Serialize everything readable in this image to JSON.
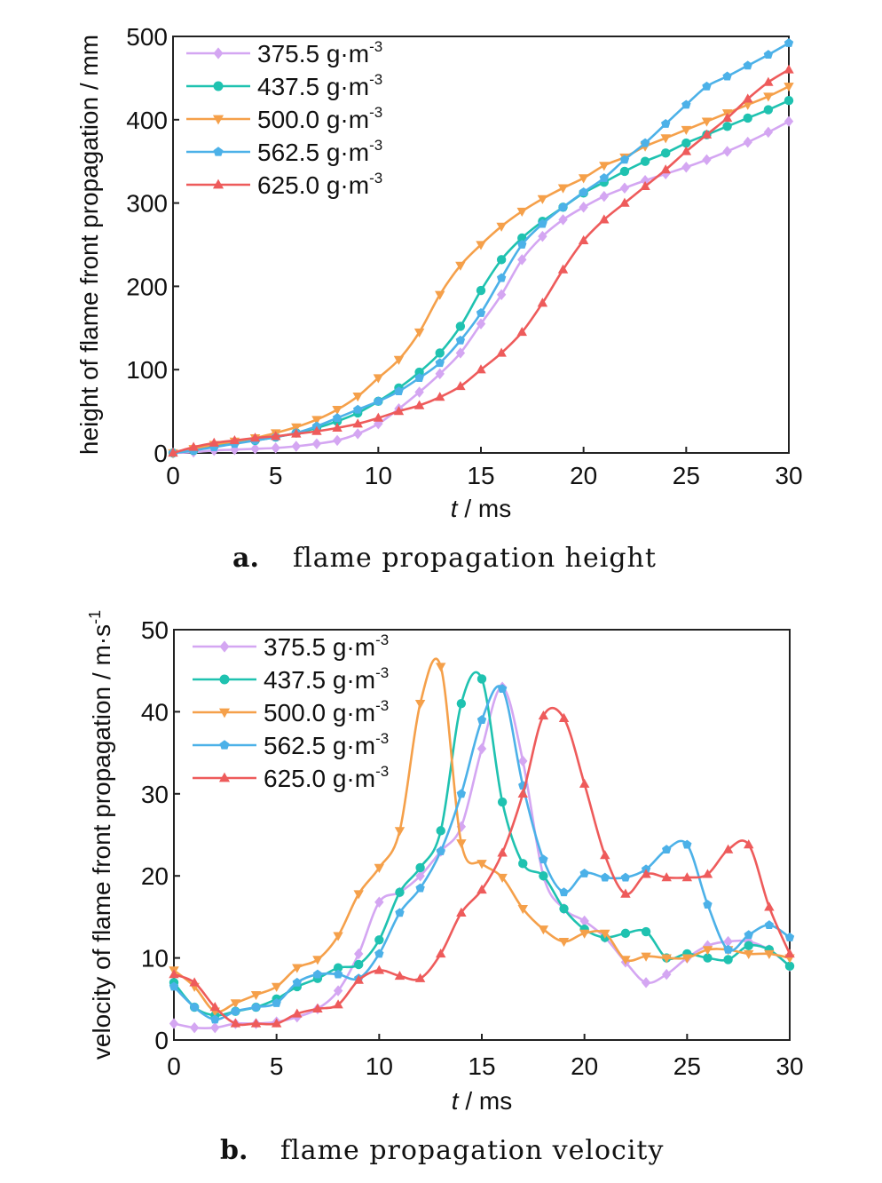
{
  "chart_data": [
    {
      "type": "line",
      "caption_letter": "a.",
      "caption": "flame propagation height",
      "xlabel_var": "t",
      "xlabel_unit": " / ms",
      "ylabel": "height of flame front propagation / mm",
      "xlim": [
        0,
        30
      ],
      "ylim": [
        0,
        500
      ],
      "xticks": [
        0,
        5,
        10,
        15,
        20,
        25,
        30
      ],
      "yticks": [
        0,
        100,
        200,
        300,
        400,
        500
      ],
      "legend_position": "top-left",
      "series": [
        {
          "name": "375.5  g·m",
          "sup": "-3",
          "color": "#d4a6f2",
          "marker": "diamond",
          "x": [
            0,
            1,
            2,
            3,
            4,
            5,
            6,
            7,
            8,
            9,
            10,
            11,
            12,
            13,
            14,
            15,
            16,
            17,
            18,
            19,
            20,
            21,
            22,
            23,
            24,
            25,
            26,
            27,
            28,
            29,
            30
          ],
          "y": [
            0,
            1,
            3,
            4,
            5,
            6,
            8,
            11,
            15,
            23,
            35,
            53,
            73,
            95,
            120,
            155,
            190,
            232,
            260,
            280,
            295,
            308,
            318,
            327,
            335,
            343,
            352,
            362,
            373,
            385,
            398
          ]
        },
        {
          "name": "437.5 g·m",
          "sup": "-3",
          "color": "#1fc2b0",
          "marker": "circle",
          "x": [
            0,
            1,
            2,
            3,
            4,
            5,
            6,
            7,
            8,
            9,
            10,
            11,
            12,
            13,
            14,
            15,
            16,
            17,
            18,
            19,
            20,
            21,
            22,
            23,
            24,
            25,
            26,
            27,
            28,
            29,
            30
          ],
          "y": [
            0,
            3,
            8,
            12,
            15,
            19,
            24,
            30,
            38,
            48,
            62,
            78,
            97,
            120,
            152,
            195,
            232,
            258,
            278,
            295,
            312,
            325,
            338,
            350,
            360,
            372,
            382,
            392,
            402,
            412,
            423
          ]
        },
        {
          "name": "500.0 g·m",
          "sup": "-3",
          "color": "#f5a04a",
          "marker": "triangle-down",
          "x": [
            0,
            1,
            2,
            3,
            4,
            5,
            6,
            7,
            8,
            9,
            10,
            11,
            12,
            13,
            14,
            15,
            16,
            17,
            18,
            19,
            20,
            21,
            22,
            23,
            24,
            25,
            26,
            27,
            28,
            29,
            30
          ],
          "y": [
            0,
            5,
            10,
            14,
            18,
            24,
            31,
            40,
            52,
            68,
            90,
            112,
            145,
            190,
            225,
            250,
            272,
            290,
            305,
            318,
            330,
            345,
            355,
            368,
            378,
            388,
            398,
            408,
            418,
            428,
            440
          ]
        },
        {
          "name": "562.5 g·m",
          "sup": "-3",
          "color": "#4cb1e8",
          "marker": "pentagon",
          "x": [
            0,
            1,
            2,
            3,
            4,
            5,
            6,
            7,
            8,
            9,
            10,
            11,
            12,
            13,
            14,
            15,
            16,
            17,
            18,
            19,
            20,
            21,
            22,
            23,
            24,
            25,
            26,
            27,
            28,
            29,
            30
          ],
          "y": [
            0,
            3,
            7,
            11,
            15,
            19,
            24,
            32,
            42,
            52,
            62,
            74,
            90,
            108,
            135,
            168,
            210,
            250,
            275,
            295,
            313,
            330,
            352,
            372,
            395,
            418,
            440,
            452,
            465,
            478,
            492
          ]
        },
        {
          "name": "625.0 g·m",
          "sup": "-3",
          "color": "#ee5b5b",
          "marker": "triangle-up",
          "x": [
            0,
            1,
            2,
            3,
            4,
            5,
            6,
            7,
            8,
            9,
            10,
            11,
            12,
            13,
            14,
            15,
            16,
            17,
            18,
            19,
            20,
            21,
            22,
            23,
            24,
            25,
            26,
            27,
            28,
            29,
            30
          ],
          "y": [
            0,
            7,
            12,
            15,
            18,
            20,
            23,
            26,
            30,
            35,
            42,
            50,
            57,
            67,
            80,
            100,
            120,
            145,
            180,
            220,
            255,
            280,
            300,
            320,
            340,
            362,
            382,
            402,
            425,
            445,
            460
          ]
        }
      ]
    },
    {
      "type": "line",
      "caption_letter": "b.",
      "caption": "flame propagation velocity",
      "xlabel_var": "t",
      "xlabel_unit": " / ms",
      "ylabel": "velocity of flame front propagation / m·s",
      "ylabel_sup": "-1",
      "xlim": [
        0,
        30
      ],
      "ylim": [
        0,
        50
      ],
      "xticks": [
        0,
        5,
        10,
        15,
        20,
        25,
        30
      ],
      "yticks": [
        0,
        10,
        20,
        30,
        40,
        50
      ],
      "legend_position": "top-left",
      "series": [
        {
          "name": "375.5  g·m",
          "sup": "-3",
          "color": "#d4a6f2",
          "marker": "diamond",
          "x": [
            0,
            1,
            2,
            3,
            4,
            5,
            6,
            7,
            8,
            9,
            10,
            11,
            12,
            13,
            14,
            15,
            16,
            17,
            18,
            19,
            20,
            21,
            22,
            23,
            24,
            25,
            26,
            27,
            28,
            29,
            30
          ],
          "y": [
            2,
            1.5,
            1.5,
            2,
            2,
            2.2,
            2.8,
            3.8,
            6,
            10.5,
            16.8,
            18,
            20,
            23,
            26,
            35.5,
            43,
            34,
            20,
            16,
            14.5,
            12.5,
            9.5,
            7,
            8,
            10,
            11.5,
            12,
            12,
            11,
            9
          ]
        },
        {
          "name": "437.5 g·m",
          "sup": "-3",
          "color": "#1fc2b0",
          "marker": "circle",
          "x": [
            0,
            1,
            2,
            3,
            4,
            5,
            6,
            7,
            8,
            9,
            10,
            11,
            12,
            13,
            14,
            15,
            16,
            17,
            18,
            19,
            20,
            21,
            22,
            23,
            24,
            25,
            26,
            27,
            28,
            29,
            30
          ],
          "y": [
            7,
            4,
            3,
            3.5,
            4,
            5,
            6.5,
            7.5,
            8.8,
            9.2,
            12.2,
            18,
            21,
            25.5,
            41,
            44,
            29,
            21.5,
            20,
            16,
            13.5,
            12.5,
            13,
            13.2,
            10,
            10.5,
            10,
            9.8,
            11.5,
            11,
            9
          ]
        },
        {
          "name": "500.0 g·m",
          "sup": "-3",
          "color": "#f5a04a",
          "marker": "triangle-down",
          "x": [
            0,
            1,
            2,
            3,
            4,
            5,
            6,
            7,
            8,
            9,
            10,
            11,
            12,
            13,
            14,
            15,
            16,
            17,
            18,
            19,
            20,
            21,
            22,
            23,
            24,
            25,
            26,
            27,
            28,
            29,
            30
          ],
          "y": [
            8.5,
            6.5,
            3.5,
            4.5,
            5.5,
            6.5,
            8.8,
            9.8,
            12.7,
            17.8,
            21,
            25.5,
            41,
            45.5,
            24,
            21.5,
            19.8,
            16,
            13.5,
            12,
            13,
            13,
            9.8,
            10.2,
            10,
            10,
            11,
            11,
            10.5,
            10.5,
            10
          ]
        },
        {
          "name": "562.5 g·m",
          "sup": "-3",
          "color": "#4cb1e8",
          "marker": "pentagon",
          "x": [
            0,
            1,
            2,
            3,
            4,
            5,
            6,
            7,
            8,
            9,
            10,
            11,
            12,
            13,
            14,
            15,
            16,
            17,
            18,
            19,
            20,
            21,
            22,
            23,
            24,
            25,
            26,
            27,
            28,
            29,
            30
          ],
          "y": [
            6.5,
            4,
            2.5,
            3.5,
            4,
            4.5,
            7,
            8,
            8,
            7.5,
            10.5,
            15.5,
            18.5,
            23,
            30,
            39,
            42.8,
            31,
            22,
            18,
            20.3,
            19.8,
            19.8,
            20.8,
            23.2,
            23.8,
            16.5,
            11,
            12.8,
            14,
            12.5
          ]
        },
        {
          "name": "625.0 g·m",
          "sup": "-3",
          "color": "#ee5b5b",
          "marker": "triangle-up",
          "x": [
            0,
            1,
            2,
            3,
            4,
            5,
            6,
            7,
            8,
            9,
            10,
            11,
            12,
            13,
            14,
            15,
            16,
            17,
            18,
            19,
            20,
            21,
            22,
            23,
            24,
            25,
            26,
            27,
            28,
            29,
            30
          ],
          "y": [
            8,
            7,
            4,
            2,
            2,
            2,
            3.2,
            3.8,
            4.3,
            7.3,
            8.5,
            7.8,
            7.5,
            10.5,
            15.5,
            18.3,
            22.8,
            30,
            39.5,
            39.2,
            31.2,
            22.5,
            17.8,
            20.2,
            19.8,
            19.8,
            20.2,
            23.2,
            23.8,
            16.2,
            10.5
          ]
        }
      ]
    }
  ]
}
